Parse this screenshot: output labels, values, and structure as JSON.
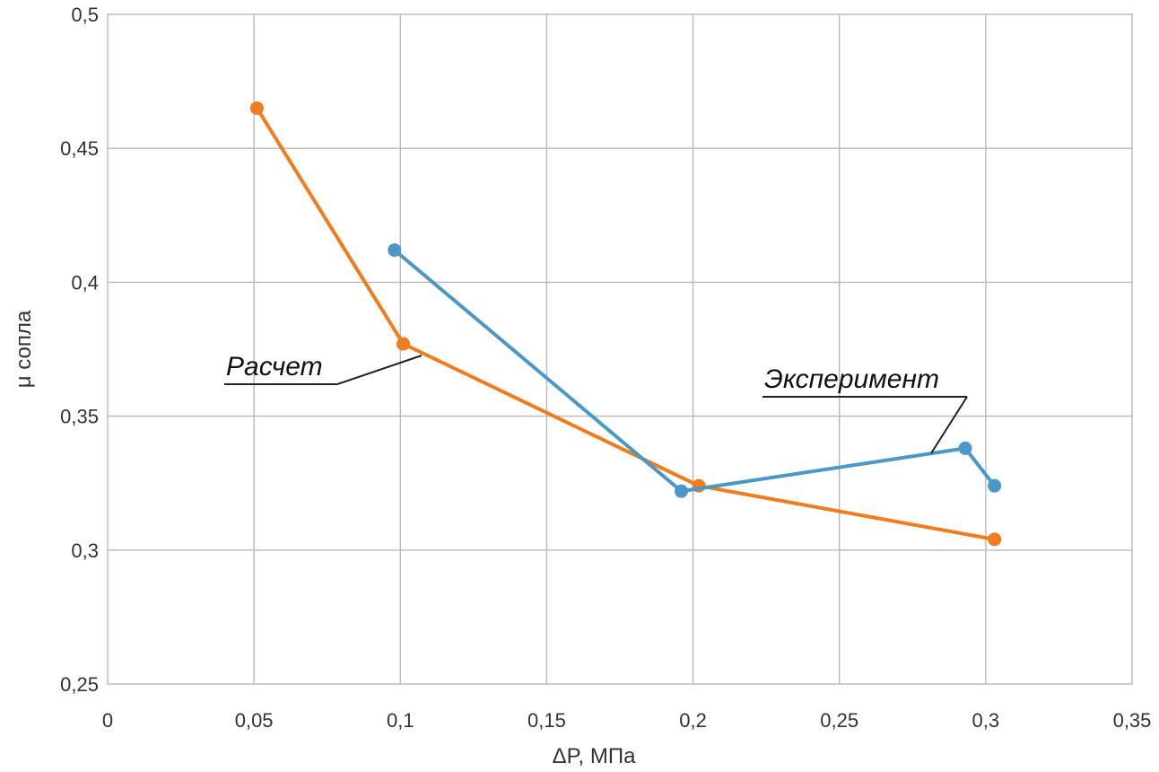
{
  "chart_data": {
    "type": "line",
    "title": "",
    "xlabel": "ΔP, МПа",
    "ylabel": "μ сопла",
    "xlim": [
      0,
      0.35
    ],
    "ylim": [
      0.25,
      0.5
    ],
    "x_ticks": [
      "0",
      "0,05",
      "0,1",
      "0,15",
      "0,2",
      "0,25",
      "0,3",
      "0,35"
    ],
    "y_ticks": [
      "0,25",
      "0,3",
      "0,35",
      "0,4",
      "0,45",
      "0,5"
    ],
    "grid": true,
    "legend": "none",
    "series": [
      {
        "name": "Расчет",
        "color": "#f07c1e",
        "points": [
          {
            "x": 0.051,
            "y": 0.465
          },
          {
            "x": 0.101,
            "y": 0.377
          },
          {
            "x": 0.202,
            "y": 0.324
          },
          {
            "x": 0.303,
            "y": 0.304
          }
        ]
      },
      {
        "name": "Эксперимент",
        "color": "#4b98c8",
        "points": [
          {
            "x": 0.098,
            "y": 0.412
          },
          {
            "x": 0.196,
            "y": 0.322
          },
          {
            "x": 0.293,
            "y": 0.338
          },
          {
            "x": 0.303,
            "y": 0.324
          }
        ]
      }
    ],
    "annotations": [
      {
        "text": "Расчет",
        "series": 0
      },
      {
        "text": "Эксперимент",
        "series": 1
      }
    ]
  }
}
